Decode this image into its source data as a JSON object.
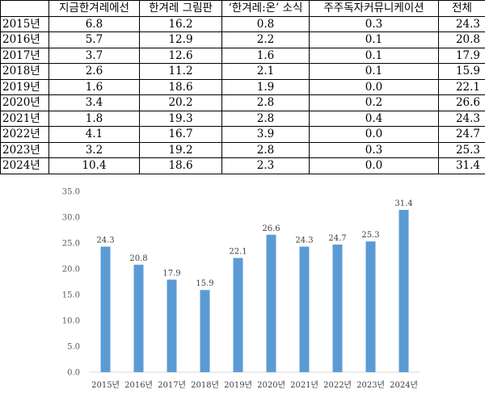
{
  "table": {
    "headers": [
      "",
      "지금한겨레에선",
      "한겨레 그림판",
      "‘한겨레:온’ 소식",
      "주주독자커뮤니케이션",
      "전체"
    ],
    "rows": [
      [
        "2015년",
        "6.8",
        "16.2",
        "0.8",
        "0.3",
        "24.3"
      ],
      [
        "2016년",
        "5.7",
        "12.9",
        "2.2",
        "0.1",
        "20.8"
      ],
      [
        "2017년",
        "3.7",
        "12.6",
        "1.6",
        "0.1",
        "17.9"
      ],
      [
        "2018년",
        "2.6",
        "11.2",
        "2.1",
        "0.1",
        "15.9"
      ],
      [
        "2019년",
        "1.6",
        "18.6",
        "1.9",
        "0.0",
        "22.1"
      ],
      [
        "2020년",
        "3.4",
        "20.2",
        "2.8",
        "0.2",
        "26.6"
      ],
      [
        "2021년",
        "1.8",
        "19.3",
        "2.8",
        "0.4",
        "24.3"
      ],
      [
        "2022년",
        "4.1",
        "16.7",
        "3.9",
        "0.0",
        "24.7"
      ],
      [
        "2023년",
        "3.2",
        "19.2",
        "2.8",
        "0.3",
        "25.3"
      ],
      [
        "2024년",
        "10.4",
        "18.6",
        "2.3",
        "0.0",
        "31.4"
      ]
    ]
  },
  "chart_data": {
    "type": "bar",
    "categories": [
      "2015년",
      "2016년",
      "2017년",
      "2018년",
      "2019년",
      "2020년",
      "2021년",
      "2022년",
      "2023년",
      "2024년"
    ],
    "values": [
      24.3,
      20.8,
      17.9,
      15.9,
      22.1,
      26.6,
      24.3,
      24.7,
      25.3,
      31.4
    ],
    "data_labels": [
      "24.3",
      "20.8",
      "17.9",
      "15.9",
      "22.1",
      "26.6",
      "24.3",
      "24.7",
      "25.3",
      "31.4"
    ],
    "yticks": [
      "0.0",
      "5.0",
      "10.0",
      "15.0",
      "20.0",
      "25.0",
      "30.0",
      "35.0"
    ],
    "ylim": [
      0,
      35
    ],
    "grid": false,
    "legend": "none",
    "bar_color": "#5b9bd5",
    "axis_color": "#d9d9d9",
    "title": "",
    "xlabel": "",
    "ylabel": ""
  }
}
